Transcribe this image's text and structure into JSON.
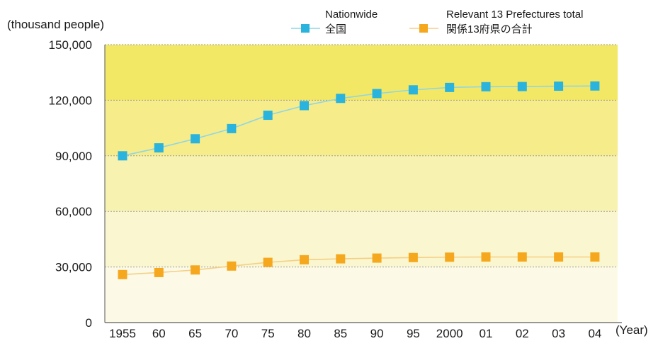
{
  "chart_data": {
    "type": "line",
    "y_unit_label": "(thousand people)",
    "x_unit_label": "(Year)",
    "categories": [
      "1955",
      "60",
      "65",
      "70",
      "75",
      "80",
      "85",
      "90",
      "95",
      "2000",
      "01",
      "02",
      "03",
      "04"
    ],
    "ylim": [
      0,
      150000
    ],
    "yticks": [
      "0",
      "30,000",
      "60,000",
      "90,000",
      "120,000",
      "150,000"
    ],
    "ytick_values": [
      0,
      30000,
      60000,
      90000,
      120000,
      150000
    ],
    "grid": true,
    "legend_position": "top-right",
    "series": [
      {
        "name_en": "Nationwide",
        "name_ja": "全国",
        "color": "#2ab3dc",
        "line_color": "#8fd6e4",
        "values": [
          90000,
          94300,
          99200,
          104700,
          111900,
          117100,
          121000,
          123600,
          125600,
          126900,
          127300,
          127400,
          127600,
          127700
        ]
      },
      {
        "name_en": "Relevant 13 Prefectures total",
        "name_ja": "関係13府県の合計",
        "color": "#f5a81e",
        "line_color": "#f5cf85",
        "values": [
          25900,
          27000,
          28400,
          30500,
          32500,
          33900,
          34400,
          34800,
          35100,
          35300,
          35400,
          35400,
          35400,
          35400
        ]
      }
    ],
    "background_bands": [
      "#f3e865",
      "#f6ec8a",
      "#f8f2b0",
      "#faf6cf",
      "#fcfae6"
    ]
  }
}
